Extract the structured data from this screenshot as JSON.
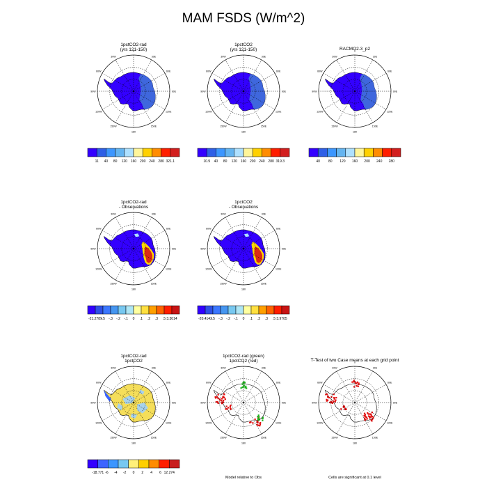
{
  "page_title": "MAM FSDS (W/m^2)",
  "colors": {
    "palette_abs": [
      "#3300ff",
      "#2e5fe6",
      "#3c96ff",
      "#64b4f0",
      "#aee0ff",
      "#fff59a",
      "#ffd000",
      "#ff8c00",
      "#ff1e00",
      "#d21e1e"
    ],
    "palette_diff": [
      "#3300ff",
      "#2e50e6",
      "#3c78ff",
      "#4696f0",
      "#78c8f0",
      "#aee6f5",
      "#ffffa0",
      "#ffe040",
      "#ffa000",
      "#ff6400",
      "#ff1e00",
      "#c81414"
    ],
    "palette_t": [
      "#3300ff",
      "#3c64ff",
      "#3c96ff",
      "#78c8f0",
      "#fff07a",
      "#ffcf00",
      "#ff8c00",
      "#ff1e00",
      "#c81e1e"
    ],
    "ice": "#3300ff",
    "shelf": "#3f67dd",
    "hot": "#dc2a16",
    "warm": "#ffd800",
    "t_yellow": "#f5de5a",
    "t_blue": "#a8d2ec",
    "t_dark": "#3c64ff",
    "sig_red": "#e01010",
    "sig_green": "#1bb21b"
  },
  "chart_data": [
    {
      "type": "heatmap",
      "projection": "south-polar-stereographic",
      "title": "1pctCO2-rad",
      "subtitle": "(yrs 121-150)",
      "lon_labels": [
        "0",
        "30E",
        "60E",
        "90E",
        "120E",
        "150E",
        "180",
        "150W",
        "120W",
        "90W",
        "60W",
        "30W"
      ],
      "colorbar": {
        "labels": [
          "11",
          "40",
          "80",
          "120",
          "160",
          "200",
          "240",
          "280",
          "321.1"
        ]
      },
      "field": "absolute"
    },
    {
      "type": "heatmap",
      "projection": "south-polar-stereographic",
      "title": "1pctCO2",
      "subtitle": "(yrs 121-150)",
      "lon_labels": [
        "0",
        "30E",
        "60E",
        "90E",
        "120E",
        "150E",
        "180",
        "150W",
        "120W",
        "90W",
        "60W",
        "30W"
      ],
      "colorbar": {
        "labels": [
          "10.9",
          "40",
          "80",
          "120",
          "160",
          "200",
          "240",
          "280",
          "319.3"
        ]
      },
      "field": "absolute"
    },
    {
      "type": "heatmap",
      "projection": "south-polar-stereographic",
      "title": "RACMO2.3_p2",
      "subtitle": "",
      "lon_labels": [
        "0",
        "30E",
        "60E",
        "90E",
        "120E",
        "150E",
        "180",
        "150W",
        "120W",
        "90W",
        "60W",
        "30W"
      ],
      "colorbar": {
        "labels": [
          "40",
          "80",
          "120",
          "160",
          "200",
          "240",
          "280"
        ]
      },
      "field": "absolute"
    },
    {
      "type": "heatmap",
      "projection": "south-polar-stereographic",
      "title": "1pctCO2-rad",
      "subtitle": "- Observations",
      "lon_labels": [
        "0",
        "30E",
        "60E",
        "90E",
        "120E",
        "150E",
        "180",
        "150W",
        "120W",
        "90W",
        "60W",
        "30W"
      ],
      "colorbar": {
        "labels": [
          "-21.2789",
          "-.5",
          "-.3",
          "-.2",
          "-.1",
          "0",
          ".1",
          ".2",
          ".3",
          ".5",
          "3.3014"
        ]
      },
      "field": "difference"
    },
    {
      "type": "heatmap",
      "projection": "south-polar-stereographic",
      "title": "1pctCO2",
      "subtitle": "- Observations",
      "lon_labels": [
        "0",
        "30E",
        "60E",
        "90E",
        "120E",
        "150E",
        "180",
        "150W",
        "120W",
        "90W",
        "60W",
        "30W"
      ],
      "colorbar": {
        "labels": [
          "-20.4143",
          "-.5",
          "-.3",
          "-.2",
          "-.1",
          "0",
          ".1",
          ".2",
          ".3",
          ".5",
          "3.9705"
        ]
      },
      "field": "difference"
    },
    {
      "type": "heatmap",
      "projection": "south-polar-stereographic",
      "title": "1pctCO2-rad",
      "subtitle": "1pctCO2",
      "lon_labels": [
        "0",
        "30E",
        "60E",
        "90E",
        "120E",
        "150E",
        "180",
        "150W",
        "120W",
        "90W",
        "60W",
        "30W"
      ],
      "colorbar": {
        "labels": [
          "-18.771",
          "-6",
          "-4",
          "-2",
          "0",
          "2",
          "4",
          "6",
          "12.274"
        ]
      },
      "field": "case-difference"
    },
    {
      "type": "heatmap",
      "projection": "south-polar-stereographic",
      "title": "1pctCO2-rad (green)",
      "subtitle": "1pctCO2 (red)",
      "lon_labels": [
        "0",
        "30E",
        "60E",
        "90E",
        "120E",
        "150E",
        "180",
        "150W",
        "120W",
        "90W",
        "60W",
        "30W"
      ],
      "footer": "Model relative to Obs",
      "field": "significance-two"
    },
    {
      "type": "heatmap",
      "projection": "south-polar-stereographic",
      "title": "T-Test of two Case means at each grid point",
      "subtitle": "",
      "lon_labels": [
        "0",
        "30E",
        "60E",
        "90E",
        "120E",
        "150E",
        "180",
        "150W",
        "120W",
        "90W",
        "60W",
        "30W"
      ],
      "footer": "Cells are significant at 0.1 level",
      "field": "significance"
    }
  ]
}
